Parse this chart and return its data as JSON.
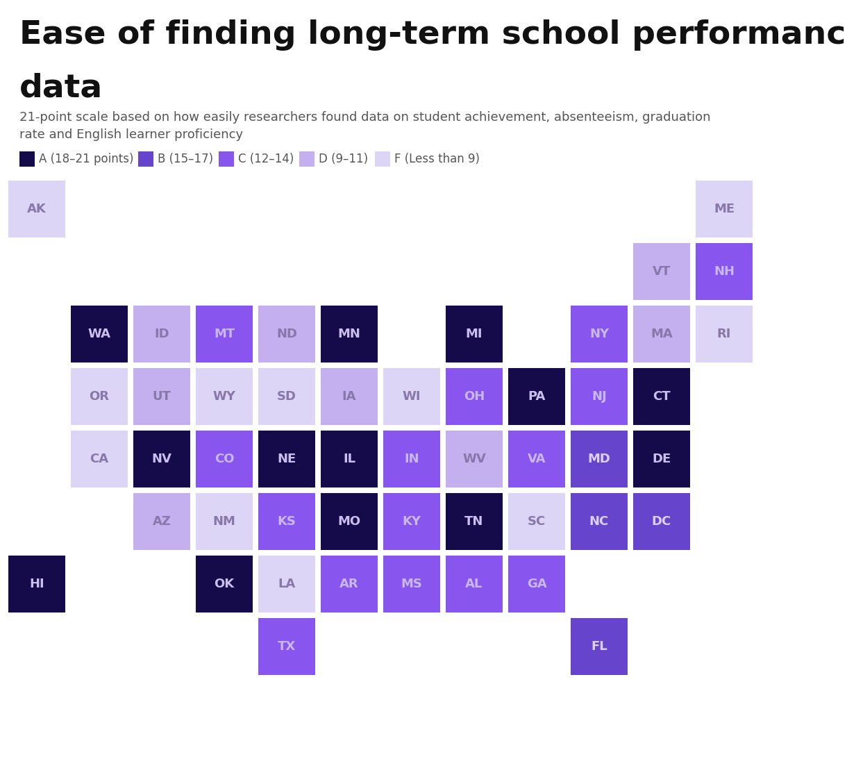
{
  "title_line1": "Ease of finding long-term school performance",
  "title_line2": "data",
  "subtitle_line1": "21-point scale based on how easily researchers found data on student achievement, absenteeism, graduation",
  "subtitle_line2": "rate and English learner proficiency",
  "grade_colors": {
    "A": "#150a4a",
    "B": "#6644cc",
    "C": "#8855ee",
    "D": "#c4b0ee",
    "F": "#ddd5f5"
  },
  "legend": [
    {
      "label": "A (18–21 points)",
      "color": "#150a4a"
    },
    {
      "label": "B (15–17)",
      "color": "#6644cc"
    },
    {
      "label": "C (12–14)",
      "color": "#8855ee"
    },
    {
      "label": "D (9–11)",
      "color": "#c4b0ee"
    },
    {
      "label": "F (Less than 9)",
      "color": "#ddd5f5"
    }
  ],
  "states": [
    {
      "abbr": "AK",
      "grade": "F",
      "col": 0,
      "row": 0
    },
    {
      "abbr": "ME",
      "grade": "F",
      "col": 11,
      "row": 0
    },
    {
      "abbr": "VT",
      "grade": "D",
      "col": 10,
      "row": 1
    },
    {
      "abbr": "NH",
      "grade": "C",
      "col": 11,
      "row": 1
    },
    {
      "abbr": "WA",
      "grade": "A",
      "col": 1,
      "row": 2
    },
    {
      "abbr": "ID",
      "grade": "D",
      "col": 2,
      "row": 2
    },
    {
      "abbr": "MT",
      "grade": "C",
      "col": 3,
      "row": 2
    },
    {
      "abbr": "ND",
      "grade": "D",
      "col": 4,
      "row": 2
    },
    {
      "abbr": "MN",
      "grade": "A",
      "col": 5,
      "row": 2
    },
    {
      "abbr": "MI",
      "grade": "A",
      "col": 7,
      "row": 2
    },
    {
      "abbr": "NY",
      "grade": "C",
      "col": 9,
      "row": 2
    },
    {
      "abbr": "MA",
      "grade": "D",
      "col": 10,
      "row": 2
    },
    {
      "abbr": "RI",
      "grade": "F",
      "col": 11,
      "row": 2
    },
    {
      "abbr": "OR",
      "grade": "F",
      "col": 1,
      "row": 3
    },
    {
      "abbr": "UT",
      "grade": "D",
      "col": 2,
      "row": 3
    },
    {
      "abbr": "WY",
      "grade": "F",
      "col": 3,
      "row": 3
    },
    {
      "abbr": "SD",
      "grade": "F",
      "col": 4,
      "row": 3
    },
    {
      "abbr": "IA",
      "grade": "D",
      "col": 5,
      "row": 3
    },
    {
      "abbr": "WI",
      "grade": "F",
      "col": 6,
      "row": 3
    },
    {
      "abbr": "OH",
      "grade": "C",
      "col": 7,
      "row": 3
    },
    {
      "abbr": "PA",
      "grade": "A",
      "col": 8,
      "row": 3
    },
    {
      "abbr": "NJ",
      "grade": "C",
      "col": 9,
      "row": 3
    },
    {
      "abbr": "CT",
      "grade": "A",
      "col": 10,
      "row": 3
    },
    {
      "abbr": "CA",
      "grade": "F",
      "col": 1,
      "row": 4
    },
    {
      "abbr": "NV",
      "grade": "A",
      "col": 2,
      "row": 4
    },
    {
      "abbr": "CO",
      "grade": "C",
      "col": 3,
      "row": 4
    },
    {
      "abbr": "NE",
      "grade": "A",
      "col": 4,
      "row": 4
    },
    {
      "abbr": "IL",
      "grade": "A",
      "col": 5,
      "row": 4
    },
    {
      "abbr": "IN",
      "grade": "C",
      "col": 6,
      "row": 4
    },
    {
      "abbr": "WV",
      "grade": "D",
      "col": 7,
      "row": 4
    },
    {
      "abbr": "VA",
      "grade": "C",
      "col": 8,
      "row": 4
    },
    {
      "abbr": "MD",
      "grade": "B",
      "col": 9,
      "row": 4
    },
    {
      "abbr": "DE",
      "grade": "A",
      "col": 10,
      "row": 4
    },
    {
      "abbr": "AZ",
      "grade": "D",
      "col": 2,
      "row": 5
    },
    {
      "abbr": "NM",
      "grade": "F",
      "col": 3,
      "row": 5
    },
    {
      "abbr": "KS",
      "grade": "C",
      "col": 4,
      "row": 5
    },
    {
      "abbr": "MO",
      "grade": "A",
      "col": 5,
      "row": 5
    },
    {
      "abbr": "KY",
      "grade": "C",
      "col": 6,
      "row": 5
    },
    {
      "abbr": "TN",
      "grade": "A",
      "col": 7,
      "row": 5
    },
    {
      "abbr": "SC",
      "grade": "F",
      "col": 8,
      "row": 5
    },
    {
      "abbr": "NC",
      "grade": "B",
      "col": 9,
      "row": 5
    },
    {
      "abbr": "DC",
      "grade": "B",
      "col": 10,
      "row": 5
    },
    {
      "abbr": "HI",
      "grade": "A",
      "col": 0,
      "row": 6
    },
    {
      "abbr": "OK",
      "grade": "A",
      "col": 3,
      "row": 6
    },
    {
      "abbr": "LA",
      "grade": "F",
      "col": 4,
      "row": 6
    },
    {
      "abbr": "AR",
      "grade": "C",
      "col": 5,
      "row": 6
    },
    {
      "abbr": "MS",
      "grade": "C",
      "col": 6,
      "row": 6
    },
    {
      "abbr": "AL",
      "grade": "C",
      "col": 7,
      "row": 6
    },
    {
      "abbr": "GA",
      "grade": "C",
      "col": 8,
      "row": 6
    },
    {
      "abbr": "TX",
      "grade": "C",
      "col": 4,
      "row": 7
    },
    {
      "abbr": "FL",
      "grade": "B",
      "col": 9,
      "row": 7
    }
  ],
  "background_color": "#ffffff"
}
